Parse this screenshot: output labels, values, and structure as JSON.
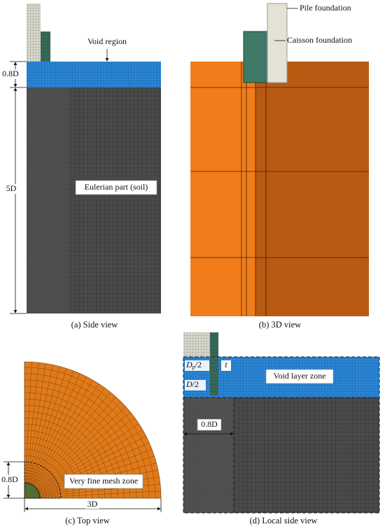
{
  "panel_a": {
    "caption": "(a) Side view",
    "void_label": "Void region",
    "void_height": "0.8D",
    "soil_height": "5D",
    "soil_label": "Eulerian part (soil)"
  },
  "panel_b": {
    "caption": "(b) 3D view",
    "pile_label": "Pile foundation",
    "caisson_label": "Caisson foundation"
  },
  "panel_c": {
    "caption": "(c) Top view",
    "fine_zone_size": "0.8D",
    "fine_zone_label": "Very fine mesh zone",
    "radius_label": "3D"
  },
  "panel_d": {
    "caption": "(d) Local side view",
    "pile_radius": {
      "base": "D",
      "sub": "p",
      "rest": "/2"
    },
    "thickness": "t",
    "caisson_radius": {
      "base": "D",
      "rest": "/2"
    },
    "void_label": "Void layer zone",
    "zone_width": "0.8D"
  }
}
